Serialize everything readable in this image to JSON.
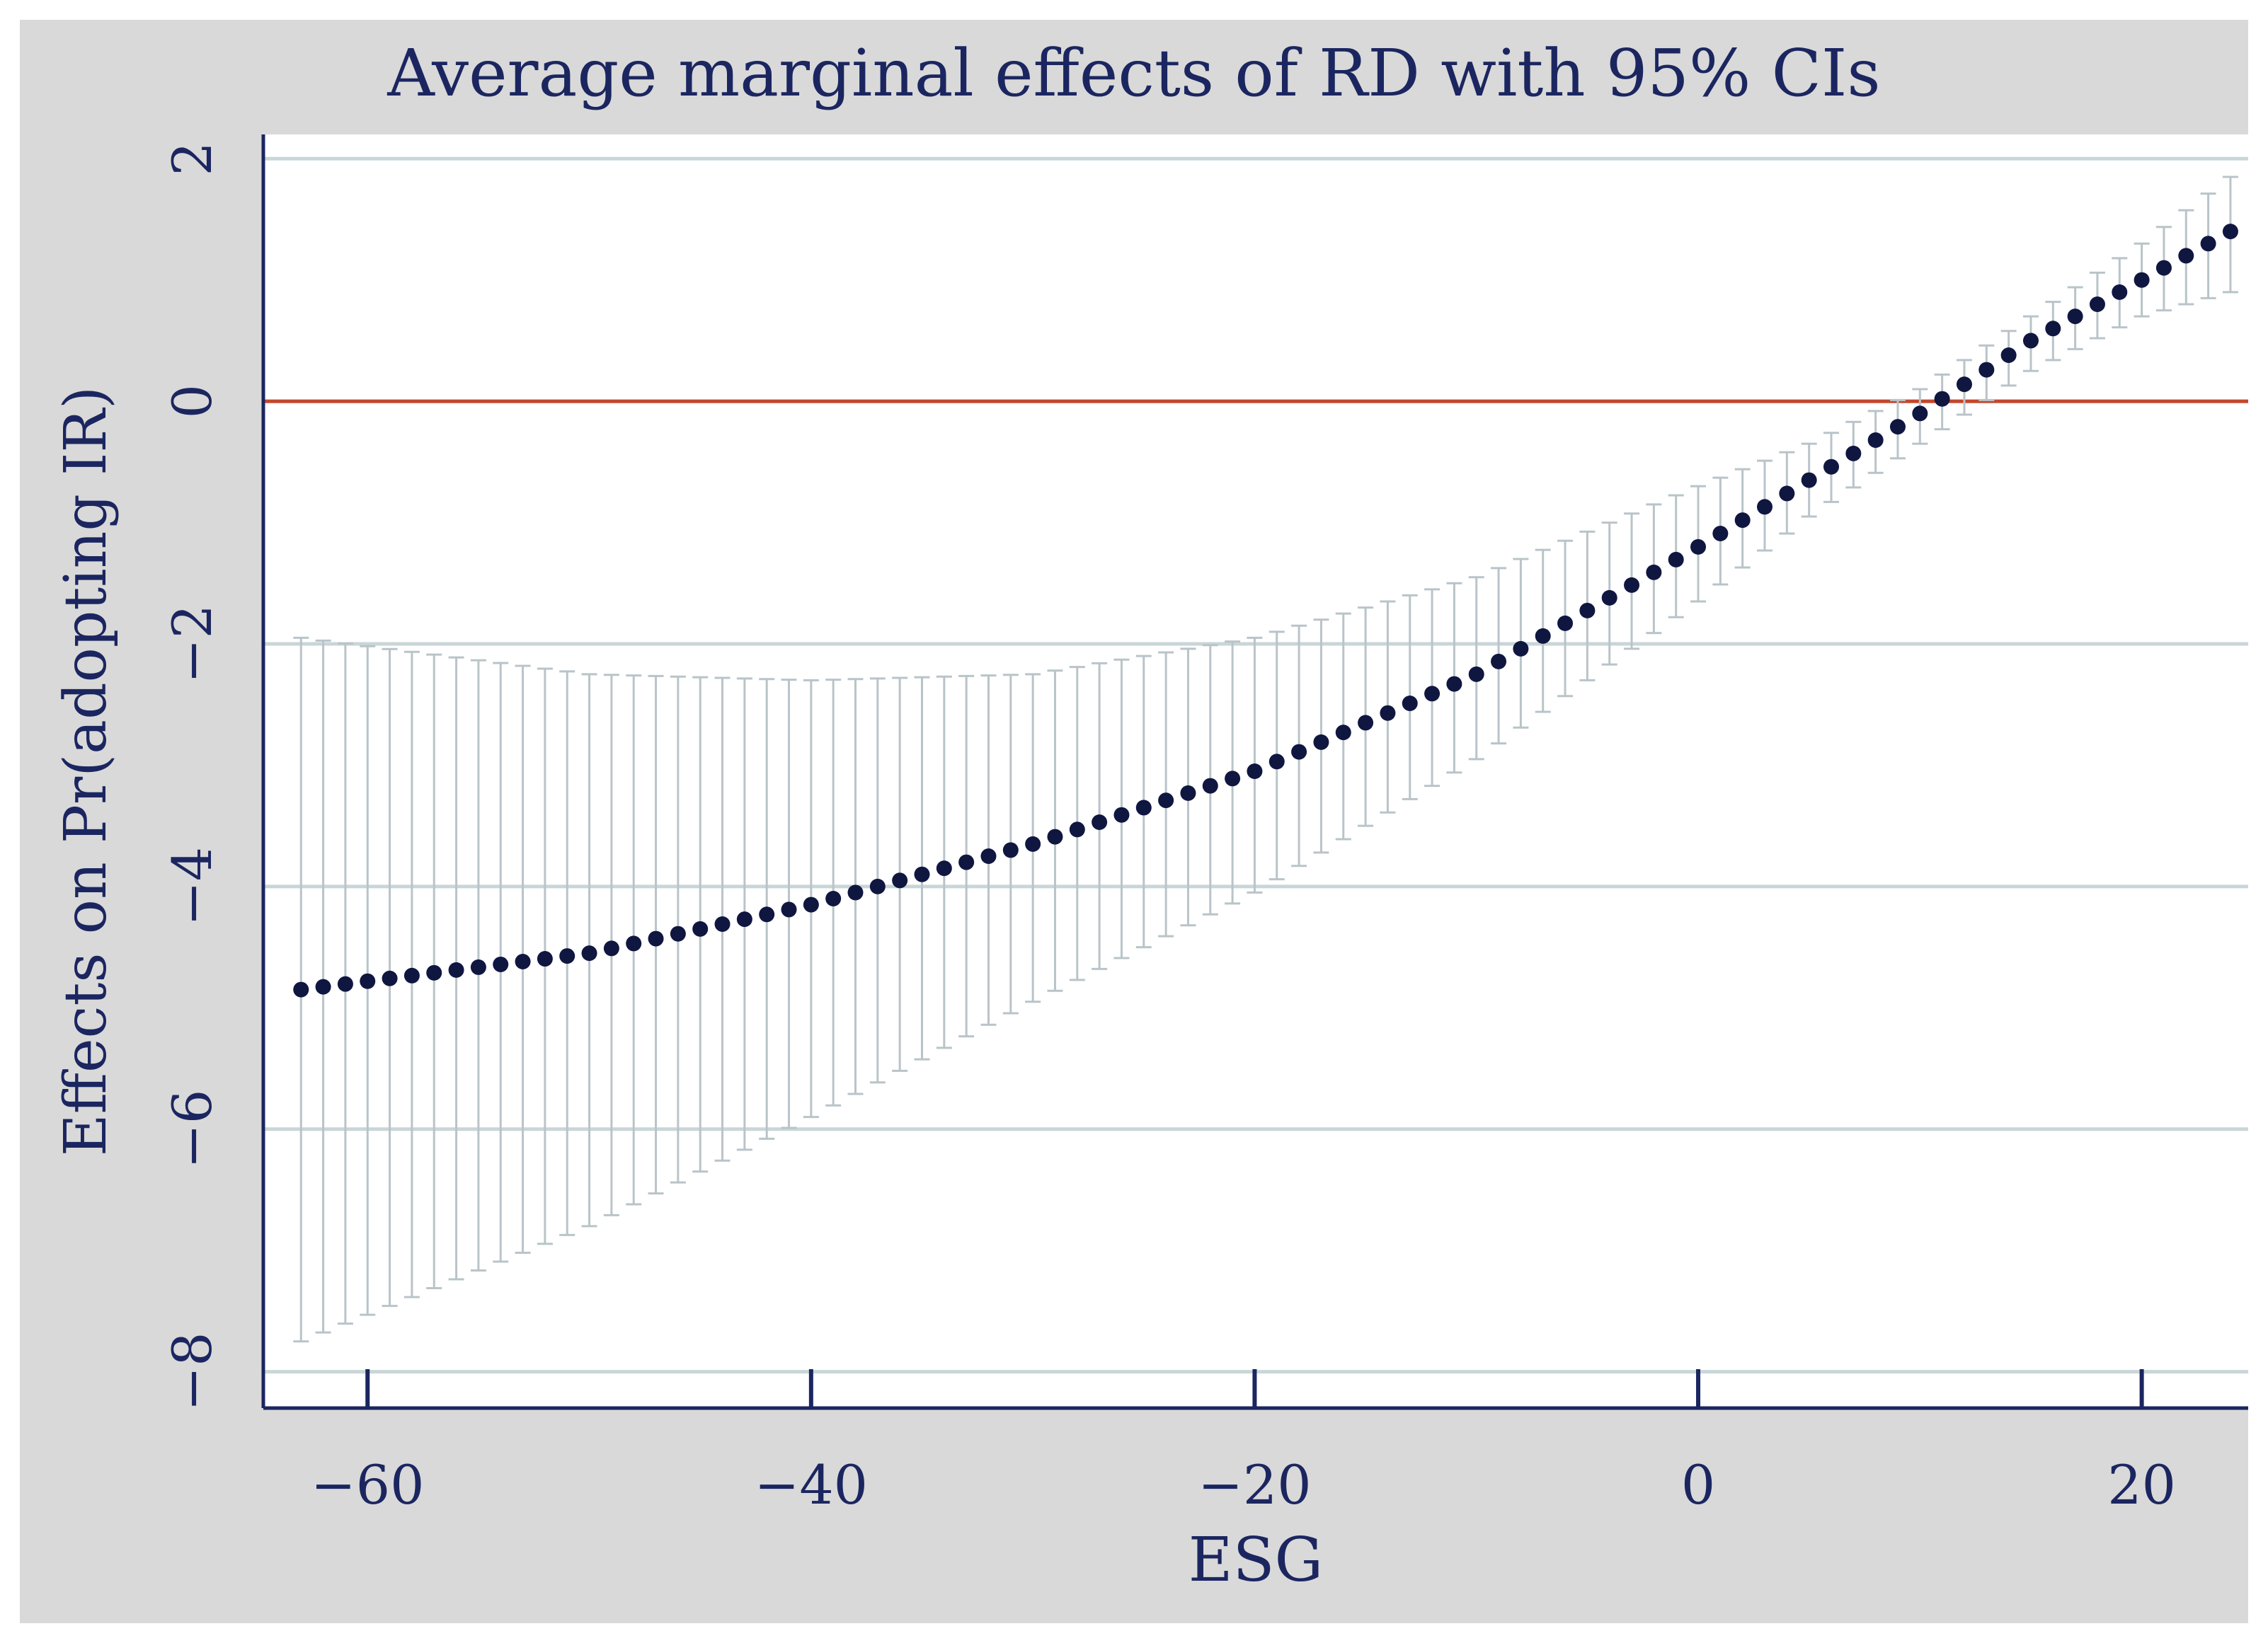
{
  "chart_data": {
    "type": "scatter",
    "title": "Average marginal effects of RD with 95% CIs",
    "xlabel": "ESG",
    "ylabel": "Effects on Pr(adopting IR)",
    "xlim": [
      -64.7,
      24.8
    ],
    "ylim": [
      -8.3,
      2.2
    ],
    "xticks": [
      -60,
      -40,
      -20,
      0,
      20
    ],
    "yticks": [
      -8,
      -6,
      -4,
      -2,
      0,
      2
    ],
    "xtick_labels": [
      "−60",
      "−40",
      "−20",
      "0",
      "20"
    ],
    "ytick_labels": [
      "−8",
      "−6",
      "−4",
      "−2",
      "0",
      "2"
    ],
    "reference_line": 0,
    "x_range": [
      -63,
      24
    ],
    "n_points": 88,
    "point_estimate_anchors": {
      "x": [
        -63,
        -50,
        -40,
        -30,
        -20,
        -10,
        0,
        5,
        10,
        15,
        20,
        24
      ],
      "y": [
        -4.85,
        -4.55,
        -4.15,
        -3.65,
        -3.05,
        -2.25,
        -1.2,
        -0.65,
        -0.1,
        0.5,
        1.0,
        1.4
      ]
    },
    "ci_lower_anchors": {
      "x": [
        -63,
        -50,
        -40,
        -30,
        -20,
        -10,
        0,
        5,
        10,
        15,
        20,
        24
      ],
      "y": [
        -7.75,
        -6.8,
        -5.9,
        -4.95,
        -4.05,
        -2.95,
        -1.65,
        -0.95,
        -0.35,
        0.25,
        0.7,
        0.9
      ]
    },
    "ci_upper_anchors": {
      "x": [
        -63,
        -50,
        -40,
        -30,
        -20,
        -10,
        0,
        5,
        10,
        15,
        20,
        24
      ],
      "y": [
        -1.95,
        -2.25,
        -2.3,
        -2.25,
        -1.95,
        -1.45,
        -0.7,
        -0.35,
        0.1,
        0.7,
        1.3,
        1.85
      ]
    },
    "colors": {
      "points": "#0f1640",
      "ci": "#b9c4c9",
      "reference_line": "#c4462a",
      "gridline": "#c9d6d8",
      "axis": "#1b2660",
      "background": "#d9d9d9",
      "plot_background": "#ffffff"
    }
  }
}
